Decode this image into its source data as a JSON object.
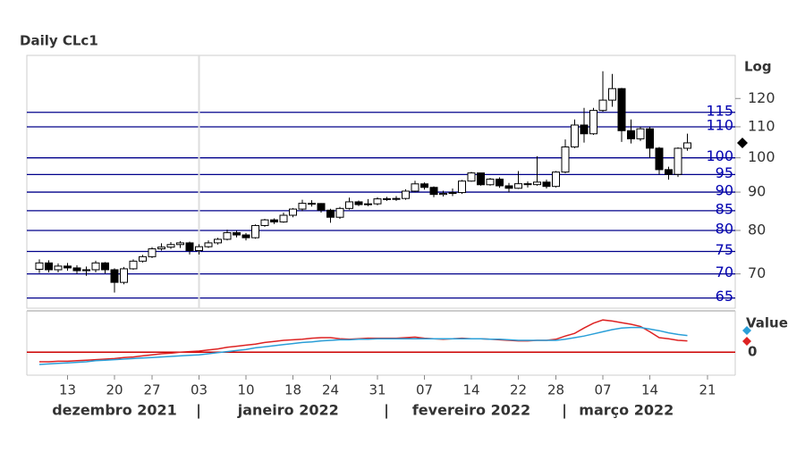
{
  "chart_data": [
    {
      "type": "candlestick",
      "title": "Daily CLc1",
      "scale_label": "Log",
      "log_scale": true,
      "x": [
        "2021-12-08",
        "2021-12-09",
        "2021-12-10",
        "2021-12-13",
        "2021-12-14",
        "2021-12-15",
        "2021-12-16",
        "2021-12-17",
        "2021-12-20",
        "2021-12-21",
        "2021-12-22",
        "2021-12-23",
        "2021-12-27",
        "2021-12-28",
        "2021-12-29",
        "2021-12-30",
        "2021-12-31",
        "2022-01-03",
        "2022-01-04",
        "2022-01-05",
        "2022-01-06",
        "2022-01-07",
        "2022-01-10",
        "2022-01-11",
        "2022-01-12",
        "2022-01-13",
        "2022-01-14",
        "2022-01-18",
        "2022-01-19",
        "2022-01-20",
        "2022-01-21",
        "2022-01-24",
        "2022-01-25",
        "2022-01-26",
        "2022-01-27",
        "2022-01-28",
        "2022-01-31",
        "2022-02-01",
        "2022-02-02",
        "2022-02-03",
        "2022-02-04",
        "2022-02-07",
        "2022-02-08",
        "2022-02-09",
        "2022-02-10",
        "2022-02-11",
        "2022-02-14",
        "2022-02-15",
        "2022-02-16",
        "2022-02-17",
        "2022-02-18",
        "2022-02-22",
        "2022-02-23",
        "2022-02-24",
        "2022-02-25",
        "2022-02-28",
        "2022-03-01",
        "2022-03-02",
        "2022-03-03",
        "2022-03-04",
        "2022-03-07",
        "2022-03-08",
        "2022-03-09",
        "2022-03-10",
        "2022-03-11",
        "2022-03-14",
        "2022-03-15",
        "2022-03-16",
        "2022-03-17",
        "2022-03-18"
      ],
      "open": [
        71.0,
        72.4,
        70.9,
        71.7,
        71.3,
        70.7,
        70.9,
        72.4,
        70.9,
        68.2,
        71.1,
        72.8,
        73.8,
        75.6,
        76.0,
        76.6,
        77.0,
        75.2,
        76.1,
        77.0,
        77.85,
        79.46,
        78.9,
        78.23,
        81.22,
        82.64,
        82.12,
        83.82,
        85.43,
        86.96,
        86.9,
        85.14,
        83.31,
        85.6,
        87.35,
        86.61,
        86.82,
        88.15,
        88.2,
        88.26,
        90.27,
        92.31,
        91.32,
        89.36,
        89.66,
        89.88,
        93.1,
        95.46,
        92.07,
        93.66,
        91.76,
        91.07,
        92.35,
        92.1,
        92.81,
        91.59,
        95.72,
        103.41,
        110.6,
        107.67,
        115.68,
        119.4,
        123.7,
        108.7,
        106.02,
        109.33,
        103.01,
        96.44,
        95.04,
        102.98
      ],
      "high": [
        73.2,
        73.0,
        72.3,
        72.4,
        71.9,
        71.6,
        72.9,
        72.6,
        71.2,
        71.5,
        73.2,
        74.2,
        76.0,
        76.9,
        77.2,
        77.4,
        77.3,
        76.7,
        77.6,
        78.2,
        80.2,
        80.0,
        79.4,
        81.5,
        82.9,
        83.0,
        84.5,
        85.7,
        87.9,
        87.8,
        87.0,
        85.5,
        86.0,
        88.5,
        87.7,
        88.1,
        88.6,
        88.7,
        88.9,
        90.8,
        93.2,
        92.7,
        91.6,
        90.4,
        91.0,
        93.4,
        95.8,
        95.5,
        94.0,
        94.2,
        92.6,
        96.0,
        93.0,
        100.5,
        93.5,
        96.0,
        105.8,
        112.5,
        116.6,
        116.6,
        130.5,
        129.4,
        124.0,
        112.5,
        110.0,
        110.0,
        103.4,
        97.3,
        103.3,
        107.7
      ],
      "low": [
        70.2,
        70.3,
        70.3,
        70.7,
        70.0,
        69.6,
        70.3,
        70.1,
        66.1,
        67.8,
        70.9,
        72.5,
        73.5,
        75.2,
        75.6,
        75.8,
        74.3,
        74.3,
        75.8,
        76.6,
        77.6,
        78.3,
        77.6,
        78.0,
        80.9,
        81.6,
        81.9,
        83.3,
        84.9,
        86.1,
        84.5,
        81.9,
        82.9,
        85.3,
        86.2,
        86.2,
        86.4,
        87.6,
        87.6,
        87.9,
        90.0,
        90.7,
        88.6,
        88.8,
        88.9,
        89.5,
        92.9,
        91.8,
        91.8,
        91.2,
        90.0,
        90.9,
        91.3,
        91.8,
        91.0,
        91.3,
        95.4,
        103.0,
        104.8,
        107.3,
        115.2,
        117.0,
        105.0,
        104.5,
        105.3,
        100.0,
        95.0,
        93.5,
        94.3,
        102.2
      ],
      "close": [
        72.4,
        70.9,
        71.7,
        71.3,
        70.7,
        70.9,
        72.4,
        70.9,
        68.2,
        71.1,
        72.8,
        73.8,
        75.6,
        76.0,
        76.6,
        77.0,
        75.2,
        76.1,
        77.0,
        77.85,
        79.46,
        78.9,
        78.23,
        81.22,
        82.64,
        82.12,
        83.82,
        85.43,
        86.96,
        86.9,
        85.14,
        83.31,
        85.6,
        87.35,
        86.61,
        86.82,
        88.15,
        88.2,
        88.26,
        90.27,
        92.31,
        91.32,
        89.36,
        89.66,
        89.88,
        93.1,
        95.46,
        92.07,
        93.66,
        91.76,
        91.07,
        92.35,
        92.1,
        92.81,
        91.59,
        95.72,
        103.41,
        110.6,
        107.67,
        115.68,
        119.4,
        123.7,
        108.7,
        106.02,
        109.33,
        103.01,
        96.44,
        95.04,
        102.98,
        104.7
      ],
      "up_color": "#ffffff",
      "down_color": "#000000",
      "hline_color": "#00008b",
      "ylim": [
        63,
        137
      ],
      "yticks": [
        70,
        80,
        90,
        100,
        110,
        120
      ],
      "hlines": [
        115,
        110,
        100,
        95,
        90,
        85,
        80,
        75,
        70,
        65
      ],
      "xticks": [
        {
          "value": "2021-12-13",
          "label": "13"
        },
        {
          "value": "2021-12-20",
          "label": "20"
        },
        {
          "value": "2021-12-27",
          "label": "27"
        },
        {
          "value": "2022-01-03",
          "label": "03"
        },
        {
          "value": "2022-01-10",
          "label": "10"
        },
        {
          "value": "2022-01-18",
          "label": "18"
        },
        {
          "value": "2022-01-24",
          "label": "24"
        },
        {
          "value": "2022-01-31",
          "label": "31"
        },
        {
          "value": "2022-02-07",
          "label": "07"
        },
        {
          "value": "2022-02-14",
          "label": "14"
        },
        {
          "value": "2022-02-22",
          "label": "22"
        },
        {
          "value": "2022-02-28",
          "label": "28"
        },
        {
          "value": "2022-03-07",
          "label": "07"
        },
        {
          "value": "2022-03-14",
          "label": "14"
        },
        {
          "value": "2022-03-21",
          "label": "21"
        }
      ],
      "months": [
        {
          "value": "2021-12",
          "label": "dezembro 2021"
        },
        {
          "value": "2022-01",
          "label": "janeiro 2022"
        },
        {
          "value": "2022-02",
          "label": "fevereiro 2022"
        },
        {
          "value": "2022-03",
          "label": "março 2022"
        }
      ]
    },
    {
      "type": "line",
      "legend_title": "Value",
      "baseline_color": "#cc0000",
      "ylim": [
        -4.3,
        7.7
      ],
      "yticks": [
        0
      ],
      "series": [
        {
          "color": "#dd2222",
          "values": [
            -1.8,
            -1.8,
            -1.7,
            -1.7,
            -1.6,
            -1.5,
            -1.4,
            -1.3,
            -1.2,
            -1.0,
            -0.9,
            -0.7,
            -0.5,
            -0.3,
            -0.2,
            0,
            0.1,
            0.2,
            0.4,
            0.6,
            0.9,
            1.1,
            1.3,
            1.5,
            1.8,
            2.0,
            2.2,
            2.3,
            2.4,
            2.6,
            2.7,
            2.7,
            2.5,
            2.4,
            2.5,
            2.6,
            2.6,
            2.6,
            2.6,
            2.7,
            2.8,
            2.6,
            2.5,
            2.4,
            2.5,
            2.6,
            2.5,
            2.5,
            2.4,
            2.3,
            2.2,
            2.1,
            2.1,
            2.2,
            2.2,
            2.4,
            3.0,
            3.5,
            4.5,
            5.4,
            6.0,
            5.8,
            5.5,
            5.2,
            4.8,
            3.8,
            2.7,
            2.5,
            2.2,
            2.1
          ]
        },
        {
          "color": "#2a9fd8",
          "values": [
            -2.3,
            -2.2,
            -2.1,
            -2.0,
            -1.9,
            -1.8,
            -1.6,
            -1.5,
            -1.4,
            -1.3,
            -1.2,
            -1.1,
            -1.0,
            -0.9,
            -0.8,
            -0.7,
            -0.6,
            -0.5,
            -0.3,
            -0.1,
            0.1,
            0.3,
            0.5,
            0.8,
            1.0,
            1.2,
            1.4,
            1.6,
            1.8,
            1.9,
            2.1,
            2.2,
            2.3,
            2.3,
            2.4,
            2.4,
            2.5,
            2.5,
            2.5,
            2.5,
            2.5,
            2.5,
            2.5,
            2.5,
            2.5,
            2.5,
            2.5,
            2.5,
            2.4,
            2.4,
            2.3,
            2.2,
            2.2,
            2.2,
            2.2,
            2.2,
            2.4,
            2.7,
            3.0,
            3.4,
            3.8,
            4.2,
            4.5,
            4.6,
            4.6,
            4.3,
            4.0,
            3.6,
            3.3,
            3.1
          ]
        }
      ]
    }
  ]
}
